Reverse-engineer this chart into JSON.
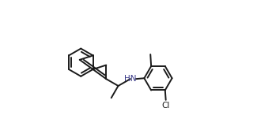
{
  "bg_color": "#ffffff",
  "bond_color": "#1a1a1a",
  "text_color": "#1a1a1a",
  "hn_color": "#3a3a8a",
  "lw": 1.4,
  "figsize": [
    3.25,
    1.51
  ],
  "dpi": 100
}
